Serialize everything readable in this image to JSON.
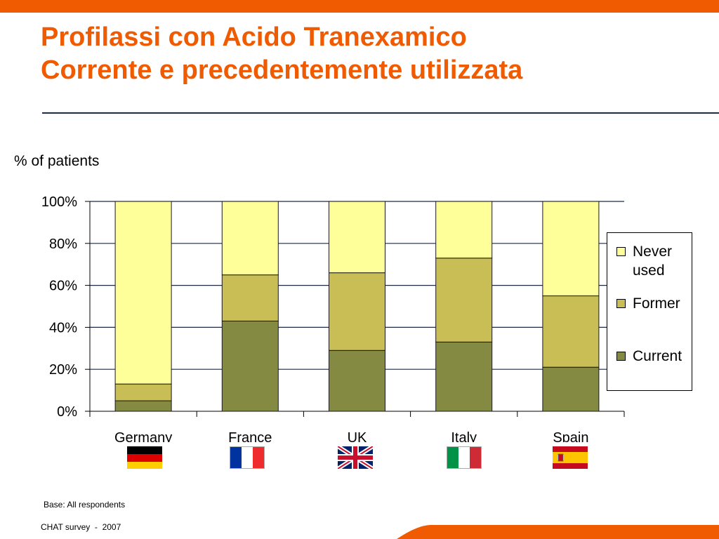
{
  "slide": {
    "title_line1": "Profilassi con Acido Tranexamico",
    "title_line2": "Corrente e precedentemente utilizzata",
    "y_axis_label": "% of patients",
    "footnote": "Base: All respondents",
    "source": "CHAT survey  -  2007"
  },
  "colors": {
    "accent": "#f05a00",
    "never_used": "#ffff99",
    "former": "#c8be55",
    "current": "#858a43"
  },
  "flags": [
    {
      "country": "Germany",
      "icon": "germany-flag-icon"
    },
    {
      "country": "France",
      "icon": "france-flag-icon"
    },
    {
      "country": "UK",
      "icon": "uk-flag-icon"
    },
    {
      "country": "Italy",
      "icon": "italy-flag-icon"
    },
    {
      "country": "Spain",
      "icon": "spain-flag-icon"
    }
  ],
  "chart_data": {
    "type": "bar",
    "stacked": true,
    "categories": [
      "Germany",
      "France",
      "UK",
      "Italy",
      "Spain"
    ],
    "series": [
      {
        "name": "Current",
        "values": [
          5,
          43,
          29,
          33,
          21
        ]
      },
      {
        "name": "Former",
        "values": [
          8,
          22,
          37,
          40,
          34
        ]
      },
      {
        "name": "Never used",
        "values": [
          87,
          35,
          34,
          27,
          45
        ]
      }
    ],
    "legend_order": [
      "Never used",
      "Former",
      "Current"
    ],
    "ylim": [
      0,
      100
    ],
    "y_ticks": [
      "0%",
      "20%",
      "40%",
      "60%",
      "80%",
      "100%"
    ],
    "grid": true,
    "legend_position": "right"
  }
}
